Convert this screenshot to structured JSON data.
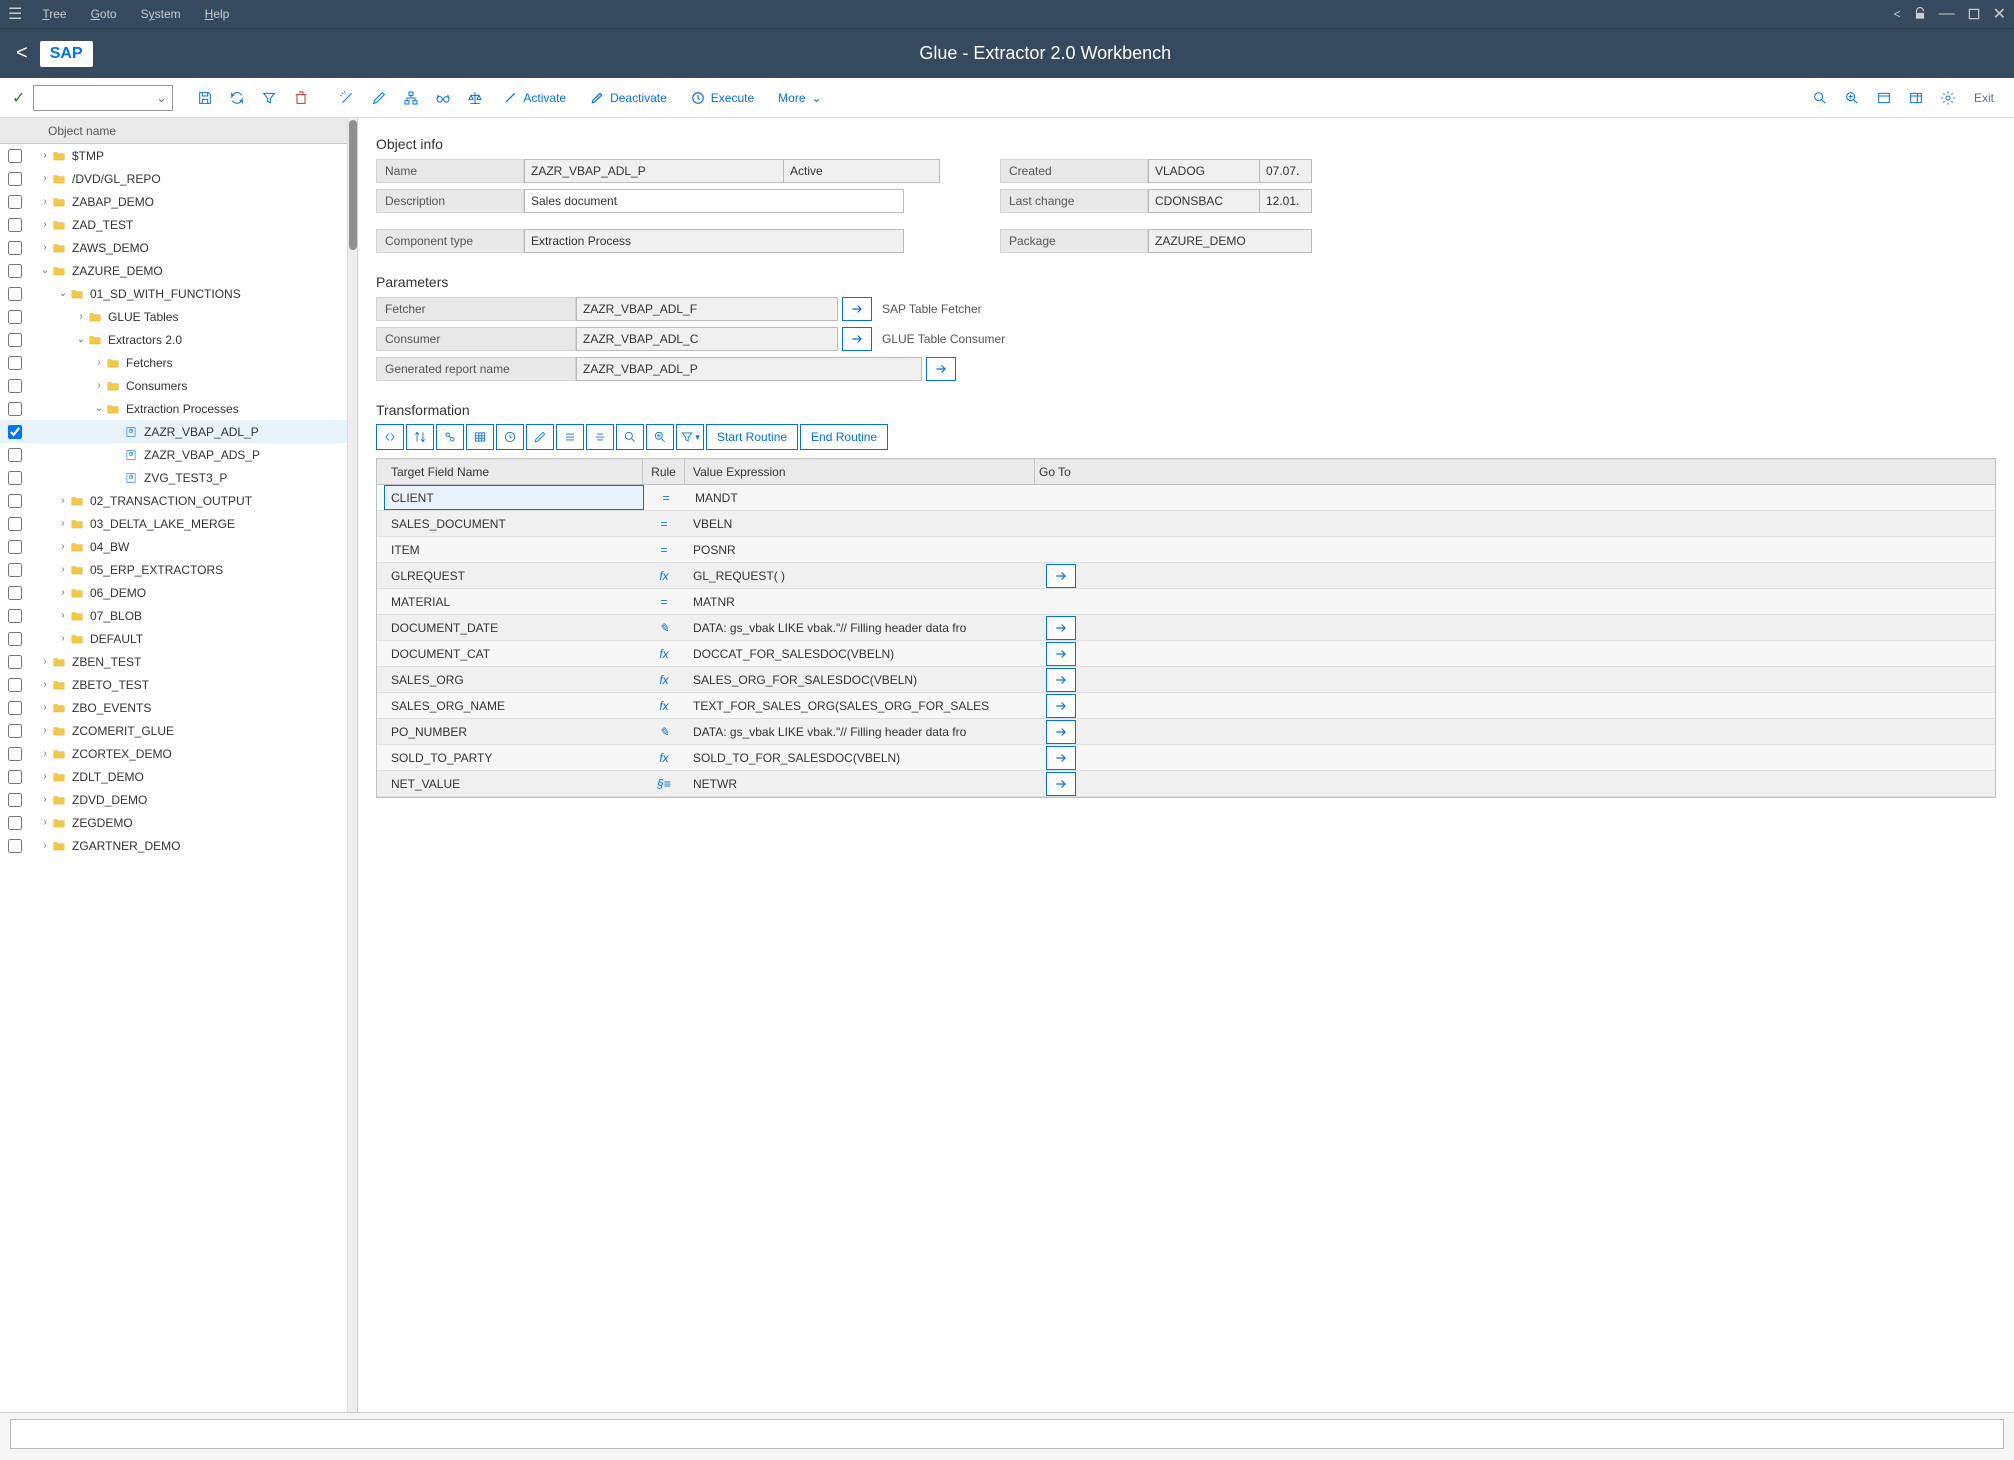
{
  "titlebar": {
    "menus": [
      "Tree",
      "Goto",
      "System",
      "Help"
    ]
  },
  "header": {
    "title": "Glue - Extractor 2.0 Workbench",
    "logo": "SAP"
  },
  "toolbar": {
    "activate": "Activate",
    "deactivate": "Deactivate",
    "execute": "Execute",
    "more": "More",
    "exit": "Exit"
  },
  "treeHeader": "Object name",
  "tree": [
    {
      "label": "$TMP",
      "depth": 0,
      "expanded": false,
      "icon": "folder"
    },
    {
      "label": "/DVD/GL_REPO",
      "depth": 0,
      "expanded": false,
      "icon": "folder"
    },
    {
      "label": "ZABAP_DEMO",
      "depth": 0,
      "expanded": false,
      "icon": "folder"
    },
    {
      "label": "ZAD_TEST",
      "depth": 0,
      "expanded": false,
      "icon": "folder"
    },
    {
      "label": "ZAWS_DEMO",
      "depth": 0,
      "expanded": false,
      "icon": "folder"
    },
    {
      "label": "ZAZURE_DEMO",
      "depth": 0,
      "expanded": true,
      "icon": "folder"
    },
    {
      "label": "01_SD_WITH_FUNCTIONS",
      "depth": 1,
      "expanded": true,
      "icon": "folder"
    },
    {
      "label": "GLUE Tables",
      "depth": 2,
      "expanded": false,
      "icon": "folder"
    },
    {
      "label": "Extractors 2.0",
      "depth": 2,
      "expanded": true,
      "icon": "folder"
    },
    {
      "label": "Fetchers",
      "depth": 3,
      "expanded": false,
      "icon": "folder"
    },
    {
      "label": "Consumers",
      "depth": 3,
      "expanded": false,
      "icon": "folder"
    },
    {
      "label": "Extraction Processes",
      "depth": 3,
      "expanded": true,
      "icon": "folder"
    },
    {
      "label": "ZAZR_VBAP_ADL_P",
      "depth": 4,
      "icon": "item",
      "selected": true,
      "checked": true
    },
    {
      "label": "ZAZR_VBAP_ADS_P",
      "depth": 4,
      "icon": "item"
    },
    {
      "label": "ZVG_TEST3_P",
      "depth": 4,
      "icon": "item"
    },
    {
      "label": "02_TRANSACTION_OUTPUT",
      "depth": 1,
      "expanded": false,
      "icon": "folder"
    },
    {
      "label": "03_DELTA_LAKE_MERGE",
      "depth": 1,
      "expanded": false,
      "icon": "folder"
    },
    {
      "label": "04_BW",
      "depth": 1,
      "expanded": false,
      "icon": "folder"
    },
    {
      "label": "05_ERP_EXTRACTORS",
      "depth": 1,
      "expanded": false,
      "icon": "folder"
    },
    {
      "label": "06_DEMO",
      "depth": 1,
      "expanded": false,
      "icon": "folder"
    },
    {
      "label": "07_BLOB",
      "depth": 1,
      "expanded": false,
      "icon": "folder"
    },
    {
      "label": "DEFAULT",
      "depth": 1,
      "expanded": false,
      "icon": "folder"
    },
    {
      "label": "ZBEN_TEST",
      "depth": 0,
      "expanded": false,
      "icon": "folder"
    },
    {
      "label": "ZBETO_TEST",
      "depth": 0,
      "expanded": false,
      "icon": "folder"
    },
    {
      "label": "ZBO_EVENTS",
      "depth": 0,
      "expanded": false,
      "icon": "folder"
    },
    {
      "label": "ZCOMERIT_GLUE",
      "depth": 0,
      "expanded": false,
      "icon": "folder"
    },
    {
      "label": "ZCORTEX_DEMO",
      "depth": 0,
      "expanded": false,
      "icon": "folder"
    },
    {
      "label": "ZDLT_DEMO",
      "depth": 0,
      "expanded": false,
      "icon": "folder"
    },
    {
      "label": "ZDVD_DEMO",
      "depth": 0,
      "expanded": false,
      "icon": "folder"
    },
    {
      "label": "ZEGDEMO",
      "depth": 0,
      "expanded": false,
      "icon": "folder"
    },
    {
      "label": "ZGARTNER_DEMO",
      "depth": 0,
      "expanded": false,
      "icon": "folder"
    }
  ],
  "objectInfo": {
    "title": "Object info",
    "labels": {
      "name": "Name",
      "desc": "Description",
      "comp": "Component type",
      "created": "Created",
      "lastChange": "Last change",
      "package": "Package"
    },
    "name": "ZAZR_VBAP_ADL_P",
    "status": "Active",
    "description": "Sales document",
    "componentType": "Extraction Process",
    "createdBy": "VLADOG",
    "createdOn": "07.07.",
    "lastChangeBy": "CDONSBAC",
    "lastChangeOn": "12.01.",
    "package": "ZAZURE_DEMO"
  },
  "parameters": {
    "title": "Parameters",
    "labels": {
      "fetcher": "Fetcher",
      "consumer": "Consumer",
      "report": "Generated report name"
    },
    "fetcher": "ZAZR_VBAP_ADL_F",
    "fetcherDesc": "SAP Table Fetcher",
    "consumer": "ZAZR_VBAP_ADL_C",
    "consumerDesc": "GLUE Table Consumer",
    "report": "ZAZR_VBAP_ADL_P"
  },
  "transformation": {
    "title": "Transformation",
    "startRoutine": "Start Routine",
    "endRoutine": "End Routine",
    "columns": {
      "target": "Target Field Name",
      "rule": "Rule",
      "value": "Value Expression",
      "goto": "Go To"
    },
    "rows": [
      {
        "target": "CLIENT",
        "rule": "=",
        "value": "MANDT",
        "goto": false,
        "selected": true
      },
      {
        "target": "SALES_DOCUMENT",
        "rule": "=",
        "value": "VBELN",
        "goto": false
      },
      {
        "target": "ITEM",
        "rule": "=",
        "value": "POSNR",
        "goto": false
      },
      {
        "target": "GLREQUEST",
        "rule": "fx",
        "value": "GL_REQUEST( )",
        "goto": true
      },
      {
        "target": "MATERIAL",
        "rule": "=",
        "value": "MATNR",
        "goto": false
      },
      {
        "target": "DOCUMENT_DATE",
        "rule": "edit",
        "value": "DATA: gs_vbak LIKE vbak.\"// Filling header data fro",
        "goto": true
      },
      {
        "target": "DOCUMENT_CAT",
        "rule": "fx",
        "value": "DOCCAT_FOR_SALESDOC(VBELN)",
        "goto": true
      },
      {
        "target": "SALES_ORG",
        "rule": "fx",
        "value": "SALES_ORG_FOR_SALESDOC(VBELN)",
        "goto": true
      },
      {
        "target": "SALES_ORG_NAME",
        "rule": "fx",
        "value": "TEXT_FOR_SALES_ORG(SALES_ORG_FOR_SALES",
        "goto": true
      },
      {
        "target": "PO_NUMBER",
        "rule": "edit",
        "value": "DATA: gs_vbak LIKE vbak.\"// Filling header data fro",
        "goto": true
      },
      {
        "target": "SOLD_TO_PARTY",
        "rule": "fx",
        "value": "SOLD_TO_FOR_SALESDOC(VBELN)",
        "goto": true
      },
      {
        "target": "NET_VALUE",
        "rule": "sum",
        "value": "NETWR",
        "goto": true
      }
    ]
  }
}
